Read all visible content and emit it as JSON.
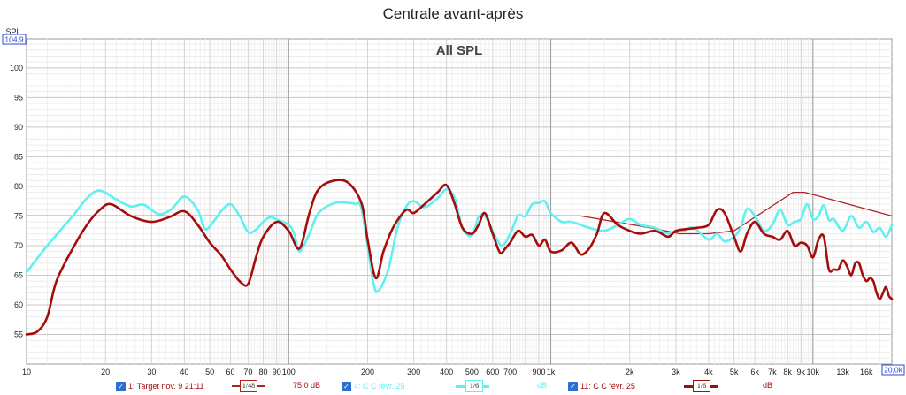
{
  "window": {
    "title": "Centrale avant-après"
  },
  "chart_data": {
    "type": "line",
    "title": "All SPL",
    "ylabel": "SPL",
    "y_top_readout": "104,9",
    "x_scale": "log",
    "xlim": [
      10,
      20000
    ],
    "ylim": [
      50,
      104.9
    ],
    "grid": true,
    "y_ticks": [
      55,
      60,
      65,
      70,
      75,
      80,
      85,
      90,
      95,
      100
    ],
    "x_ticks": [
      {
        "v": 10,
        "label": "10"
      },
      {
        "v": 20,
        "label": "20"
      },
      {
        "v": 30,
        "label": "30"
      },
      {
        "v": 40,
        "label": "40"
      },
      {
        "v": 50,
        "label": "50"
      },
      {
        "v": 60,
        "label": "60"
      },
      {
        "v": 70,
        "label": "70"
      },
      {
        "v": 80,
        "label": "80"
      },
      {
        "v": 90,
        "label": "90"
      },
      {
        "v": 100,
        "label": "100"
      },
      {
        "v": 200,
        "label": "200"
      },
      {
        "v": 300,
        "label": "300"
      },
      {
        "v": 400,
        "label": "400"
      },
      {
        "v": 500,
        "label": "500"
      },
      {
        "v": 600,
        "label": "600"
      },
      {
        "v": 700,
        "label": "700"
      },
      {
        "v": 900,
        "label": "900"
      },
      {
        "v": 1000,
        "label": "1k"
      },
      {
        "v": 2000,
        "label": "2k"
      },
      {
        "v": 3000,
        "label": "3k"
      },
      {
        "v": 4000,
        "label": "4k"
      },
      {
        "v": 5000,
        "label": "5k"
      },
      {
        "v": 6000,
        "label": "6k"
      },
      {
        "v": 7000,
        "label": "7k"
      },
      {
        "v": 8000,
        "label": "8k"
      },
      {
        "v": 9000,
        "label": "9k"
      },
      {
        "v": 10000,
        "label": "10k"
      },
      {
        "v": 13000,
        "label": "13k"
      },
      {
        "v": 16000,
        "label": "16k"
      }
    ],
    "x_end_label": "20,0k",
    "series": [
      {
        "name": "1: Target nov. 9 21:11",
        "color": "#b22222",
        "smoothing": "1/48",
        "legend_value": "75,0 dB",
        "x": [
          10,
          1300,
          2400,
          3100,
          4000,
          5000,
          8400,
          9300,
          20000
        ],
        "y": [
          75,
          75,
          73,
          72,
          72,
          72.5,
          79,
          79,
          75
        ]
      },
      {
        "name": "4: C C févr. 25",
        "color": "#5ff0f0",
        "smoothing": "1/6",
        "legend_value": "dB",
        "x": [
          10,
          12,
          15,
          17,
          19,
          22,
          25,
          28,
          32,
          36,
          40,
          45,
          48,
          52,
          55,
          60,
          65,
          70,
          75,
          80,
          85,
          90,
          100,
          105,
          110,
          120,
          130,
          150,
          170,
          180,
          190,
          210,
          220,
          240,
          260,
          280,
          300,
          330,
          370,
          400,
          430,
          460,
          500,
          530,
          560,
          600,
          650,
          700,
          750,
          800,
          850,
          900,
          950,
          1000,
          1100,
          1200,
          1400,
          1600,
          1800,
          2000,
          2200,
          2500,
          2800,
          3000,
          3200,
          3500,
          4000,
          4300,
          4600,
          5000,
          5300,
          5600,
          6000,
          6500,
          7000,
          7500,
          8000,
          8500,
          9000,
          9500,
          10000,
          10500,
          11000,
          11500,
          12000,
          13000,
          14000,
          15000,
          16000,
          17000,
          18000,
          19000,
          20000
        ],
        "y": [
          65.5,
          70,
          75,
          78,
          79.3,
          77.8,
          76.6,
          76.9,
          75.3,
          76.3,
          78.3,
          76,
          72.8,
          74.2,
          75.7,
          77,
          75,
          72.3,
          72.7,
          74,
          74.8,
          74.4,
          73.5,
          72,
          69,
          72,
          75.5,
          77.2,
          77.2,
          77,
          76,
          64,
          62.4,
          66,
          73,
          76.5,
          77.5,
          76.5,
          78,
          79.5,
          78,
          73,
          71.7,
          74.8,
          75,
          72.5,
          70,
          72,
          75,
          75,
          77,
          77.2,
          77.5,
          75.5,
          74,
          74,
          73,
          72.5,
          73.5,
          74.5,
          73.5,
          73,
          72,
          72.5,
          72.5,
          73,
          71,
          72,
          70.7,
          71.5,
          73,
          76.2,
          75,
          72.5,
          73.5,
          76,
          73.5,
          74,
          74.5,
          77,
          74.5,
          75,
          76.8,
          74.3,
          74.5,
          72.5,
          75,
          73,
          74,
          72.3,
          73,
          71.5,
          73.5
        ]
      },
      {
        "name": "11: C C févr. 25",
        "color": "#a50d0d",
        "smoothing": "1/6",
        "legend_value": "dB",
        "x": [
          10,
          11,
          12,
          13,
          15,
          17,
          19,
          21,
          25,
          30,
          35,
          40,
          45,
          50,
          55,
          60,
          65,
          70,
          75,
          80,
          90,
          100,
          110,
          120,
          130,
          150,
          170,
          190,
          200,
          215,
          230,
          250,
          280,
          300,
          330,
          370,
          400,
          430,
          460,
          500,
          530,
          560,
          600,
          640,
          670,
          700,
          750,
          800,
          850,
          900,
          950,
          1000,
          1100,
          1200,
          1300,
          1400,
          1500,
          1600,
          1800,
          2000,
          2200,
          2500,
          2800,
          3000,
          3300,
          3600,
          4000,
          4300,
          4600,
          5000,
          5300,
          5600,
          6000,
          6500,
          7000,
          7500,
          8000,
          8500,
          9000,
          9500,
          10000,
          10500,
          11000,
          11500,
          12000,
          12500,
          13000,
          13500,
          14000,
          14500,
          15000,
          15500,
          16000,
          16500,
          17000,
          17500,
          18000,
          18500,
          19000,
          19500,
          20000
        ],
        "y": [
          55,
          55.5,
          58,
          64,
          69.5,
          73.5,
          76,
          77,
          75,
          74,
          74.8,
          75.8,
          73.5,
          70.5,
          68.5,
          66,
          64,
          63.5,
          68,
          71.5,
          74,
          72.5,
          69.5,
          75.5,
          79.5,
          81,
          80.5,
          77,
          71,
          64.5,
          69,
          73,
          76,
          75.5,
          77,
          79,
          80.2,
          77,
          73,
          72,
          73.5,
          75.5,
          72,
          68.8,
          69.5,
          70.5,
          72.5,
          71.5,
          71.8,
          70,
          71,
          69,
          69.2,
          70.5,
          68.5,
          69.5,
          72,
          75.5,
          73.5,
          72.5,
          72,
          72.5,
          71.5,
          72.5,
          72.8,
          73,
          73.5,
          76,
          75.5,
          71.5,
          69,
          72,
          74,
          72,
          71.5,
          71,
          72.5,
          70,
          70.5,
          70,
          68,
          71,
          71.5,
          66,
          66,
          66,
          67.5,
          66.5,
          65,
          67,
          67,
          65,
          64,
          64.5,
          64,
          62,
          61,
          62,
          63,
          61.5,
          61
        ]
      }
    ]
  },
  "legend": {
    "items": [
      {
        "label": "1: Target nov. 9 21:11",
        "smoothing": "1/48",
        "value": "75,0 dB"
      },
      {
        "label": "4: C C févr. 25",
        "smoothing": "1/6",
        "value": "dB"
      },
      {
        "label": "11: C C févr. 25",
        "smoothing": "1/6",
        "value": "dB"
      }
    ]
  }
}
